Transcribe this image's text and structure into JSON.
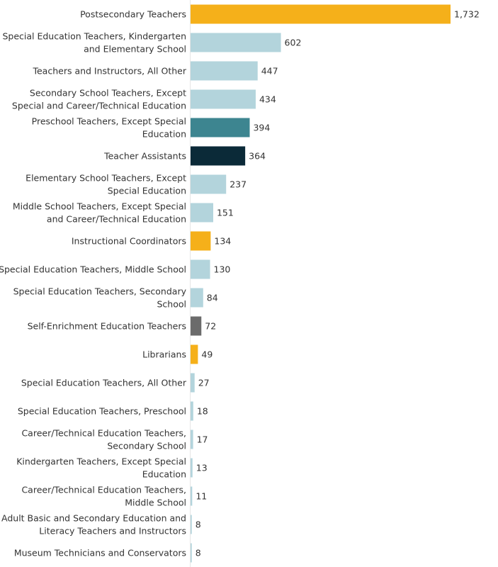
{
  "chart_data": {
    "type": "bar",
    "orientation": "horizontal",
    "title": "",
    "xlabel": "",
    "ylabel": "",
    "grid": false,
    "legend": "none",
    "xlim": [
      0,
      1732
    ],
    "bars": [
      {
        "label": "Postsecondary Teachers",
        "value": 1732,
        "value_label": "1,732",
        "color": "#f5b01a"
      },
      {
        "label": "Special Education Teachers, Kindergarten|and Elementary School",
        "value": 602,
        "value_label": "602",
        "color": "#b3d4dc"
      },
      {
        "label": "Teachers and Instructors, All Other",
        "value": 447,
        "value_label": "447",
        "color": "#b3d4dc"
      },
      {
        "label": "Secondary School Teachers, Except|Special and Career/Technical Education",
        "value": 434,
        "value_label": "434",
        "color": "#b3d4dc"
      },
      {
        "label": "Preschool Teachers, Except Special|Education",
        "value": 394,
        "value_label": "394",
        "color": "#3d8590"
      },
      {
        "label": "Teacher Assistants",
        "value": 364,
        "value_label": "364",
        "color": "#0b2a38"
      },
      {
        "label": "Elementary School Teachers, Except|Special Education",
        "value": 237,
        "value_label": "237",
        "color": "#b3d4dc"
      },
      {
        "label": "Middle School Teachers, Except Special|and Career/Technical Education",
        "value": 151,
        "value_label": "151",
        "color": "#b3d4dc"
      },
      {
        "label": "Instructional Coordinators",
        "value": 134,
        "value_label": "134",
        "color": "#f5b01a"
      },
      {
        "label": "Special Education Teachers, Middle School",
        "value": 130,
        "value_label": "130",
        "color": "#b3d4dc"
      },
      {
        "label": "Special Education Teachers, Secondary|School",
        "value": 84,
        "value_label": "84",
        "color": "#b3d4dc"
      },
      {
        "label": "Self-Enrichment Education Teachers",
        "value": 72,
        "value_label": "72",
        "color": "#6b6b6b"
      },
      {
        "label": "Librarians",
        "value": 49,
        "value_label": "49",
        "color": "#f5b01a"
      },
      {
        "label": "Special Education Teachers, All Other",
        "value": 27,
        "value_label": "27",
        "color": "#b3d4dc"
      },
      {
        "label": "Special Education Teachers, Preschool",
        "value": 18,
        "value_label": "18",
        "color": "#b3d4dc"
      },
      {
        "label": "Career/Technical Education Teachers,|Secondary School",
        "value": 17,
        "value_label": "17",
        "color": "#b3d4dc"
      },
      {
        "label": "Kindergarten Teachers, Except Special|Education",
        "value": 13,
        "value_label": "13",
        "color": "#b3d4dc"
      },
      {
        "label": "Career/Technical Education Teachers,|Middle School",
        "value": 11,
        "value_label": "11",
        "color": "#b3d4dc"
      },
      {
        "label": "Adult Basic and Secondary Education and|Literacy Teachers and Instructors",
        "value": 8,
        "value_label": "8",
        "color": "#b3d4dc"
      },
      {
        "label": "Museum Technicians and Conservators",
        "value": 8,
        "value_label": "8",
        "color": "#b3d4dc"
      }
    ]
  }
}
